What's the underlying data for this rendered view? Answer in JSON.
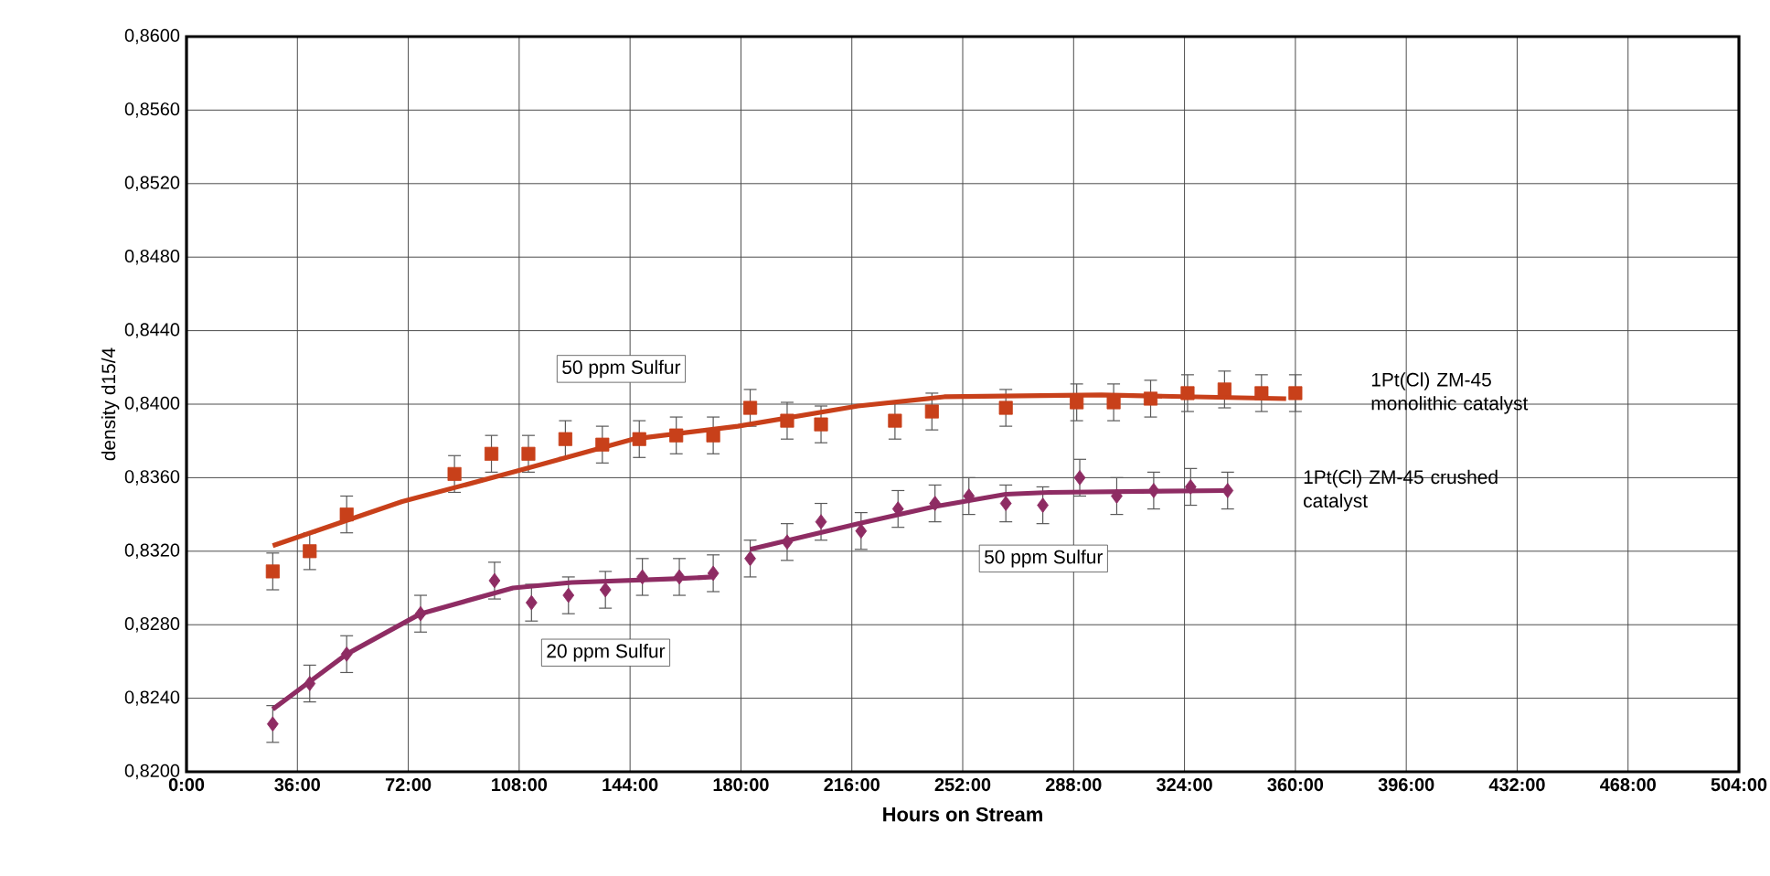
{
  "chart_data": {
    "type": "scatter",
    "xlabel": "Hours on Stream",
    "ylabel": "density d15/4",
    "xlim": [
      0,
      504
    ],
    "ylim": [
      0.82,
      0.86
    ],
    "xticks": [
      {
        "value": 0,
        "label": "0:00"
      },
      {
        "value": 36,
        "label": "36:00"
      },
      {
        "value": 72,
        "label": "72:00"
      },
      {
        "value": 108,
        "label": "108:00"
      },
      {
        "value": 144,
        "label": "144:00"
      },
      {
        "value": 180,
        "label": "180:00"
      },
      {
        "value": 216,
        "label": "216:00"
      },
      {
        "value": 252,
        "label": "252:00"
      },
      {
        "value": 288,
        "label": "288:00"
      },
      {
        "value": 324,
        "label": "324:00"
      },
      {
        "value": 360,
        "label": "360:00"
      },
      {
        "value": 396,
        "label": "396:00"
      },
      {
        "value": 432,
        "label": "432:00"
      },
      {
        "value": 468,
        "label": "468:00"
      },
      {
        "value": 504,
        "label": "504:00"
      }
    ],
    "yticks": [
      {
        "value": 0.82,
        "label": "0,8200"
      },
      {
        "value": 0.824,
        "label": "0,8240"
      },
      {
        "value": 0.828,
        "label": "0,8280"
      },
      {
        "value": 0.832,
        "label": "0,8320"
      },
      {
        "value": 0.836,
        "label": "0,8360"
      },
      {
        "value": 0.84,
        "label": "0,8400"
      },
      {
        "value": 0.844,
        "label": "0,8440"
      },
      {
        "value": 0.848,
        "label": "0,8480"
      },
      {
        "value": 0.852,
        "label": "0,8520"
      },
      {
        "value": 0.856,
        "label": "0,8560"
      },
      {
        "value": 0.86,
        "label": "0,8600"
      }
    ],
    "grid": true,
    "series": [
      {
        "name": "1Pt(Cl) ZM-45 monolithic catalyst",
        "marker": "square",
        "color": "#c8401a",
        "x": [
          28,
          40,
          52,
          87,
          99,
          111,
          123,
          135,
          147,
          159,
          171,
          183,
          195,
          206,
          230,
          242,
          266,
          289,
          301,
          313,
          325,
          337,
          349,
          360
        ],
        "values": [
          0.8309,
          0.832,
          0.834,
          0.8362,
          0.8373,
          0.8373,
          0.8381,
          0.8378,
          0.8381,
          0.8383,
          0.8383,
          0.8398,
          0.8391,
          0.8389,
          0.8391,
          0.8396,
          0.8398,
          0.8401,
          0.8401,
          0.8403,
          0.8406,
          0.8408,
          0.8406,
          0.8406
        ],
        "errors": [
          0.001,
          0.001,
          0.001,
          0.001,
          0.001,
          0.001,
          0.001,
          0.001,
          0.001,
          0.001,
          0.001,
          0.001,
          0.001,
          0.001,
          0.001,
          0.001,
          0.001,
          0.001,
          0.001,
          0.001,
          0.001,
          0.001,
          0.001,
          0.001
        ]
      },
      {
        "type": "line",
        "marker": "none",
        "color": "#c8401a",
        "x": [
          28,
          70,
          106,
          145,
          179,
          218,
          246,
          297,
          357
        ],
        "values": [
          0.8323,
          0.8347,
          0.8363,
          0.8381,
          0.8388,
          0.8399,
          0.8404,
          0.8405,
          0.8403
        ]
      },
      {
        "marker": "diamond",
        "color": "#8e2c63",
        "x": [
          28,
          40,
          52,
          76,
          100,
          112,
          124,
          136,
          148,
          160,
          171
        ],
        "values": [
          0.8226,
          0.8248,
          0.8264,
          0.8286,
          0.8304,
          0.8292,
          0.8296,
          0.8299,
          0.8306,
          0.8306,
          0.8308
        ],
        "errors": [
          0.001,
          0.001,
          0.001,
          0.001,
          0.001,
          0.001,
          0.001,
          0.001,
          0.001,
          0.001,
          0.001
        ]
      },
      {
        "type": "line",
        "marker": "none",
        "color": "#8e2c63",
        "x": [
          28,
          40,
          52,
          76,
          106,
          125,
          159,
          171
        ],
        "values": [
          0.8234,
          0.8249,
          0.8264,
          0.8286,
          0.83,
          0.8303,
          0.8305,
          0.8306
        ]
      },
      {
        "name": "1Pt(Cl) ZM-45 crushed catalyst",
        "marker": "diamond",
        "color": "#8e2c63",
        "x": [
          183,
          195,
          206,
          219,
          231,
          243,
          254,
          266,
          278,
          290,
          302,
          314,
          326,
          338
        ],
        "values": [
          0.8316,
          0.8325,
          0.8336,
          0.8331,
          0.8343,
          0.8346,
          0.835,
          0.8346,
          0.8345,
          0.836,
          0.835,
          0.8353,
          0.8355,
          0.8353
        ],
        "errors": [
          0.001,
          0.001,
          0.001,
          0.001,
          0.001,
          0.001,
          0.001,
          0.001,
          0.001,
          0.001,
          0.001,
          0.001,
          0.001,
          0.001
        ]
      },
      {
        "type": "line",
        "marker": "none",
        "color": "#8e2c63",
        "x": [
          183,
          218,
          242,
          266,
          280,
          337
        ],
        "values": [
          0.8321,
          0.8335,
          0.8344,
          0.8351,
          0.8352,
          0.8353
        ]
      }
    ],
    "annotations": [
      "50 ppm Sulfur",
      "20 ppm Sulfur",
      "50 ppm Sulfur"
    ]
  }
}
